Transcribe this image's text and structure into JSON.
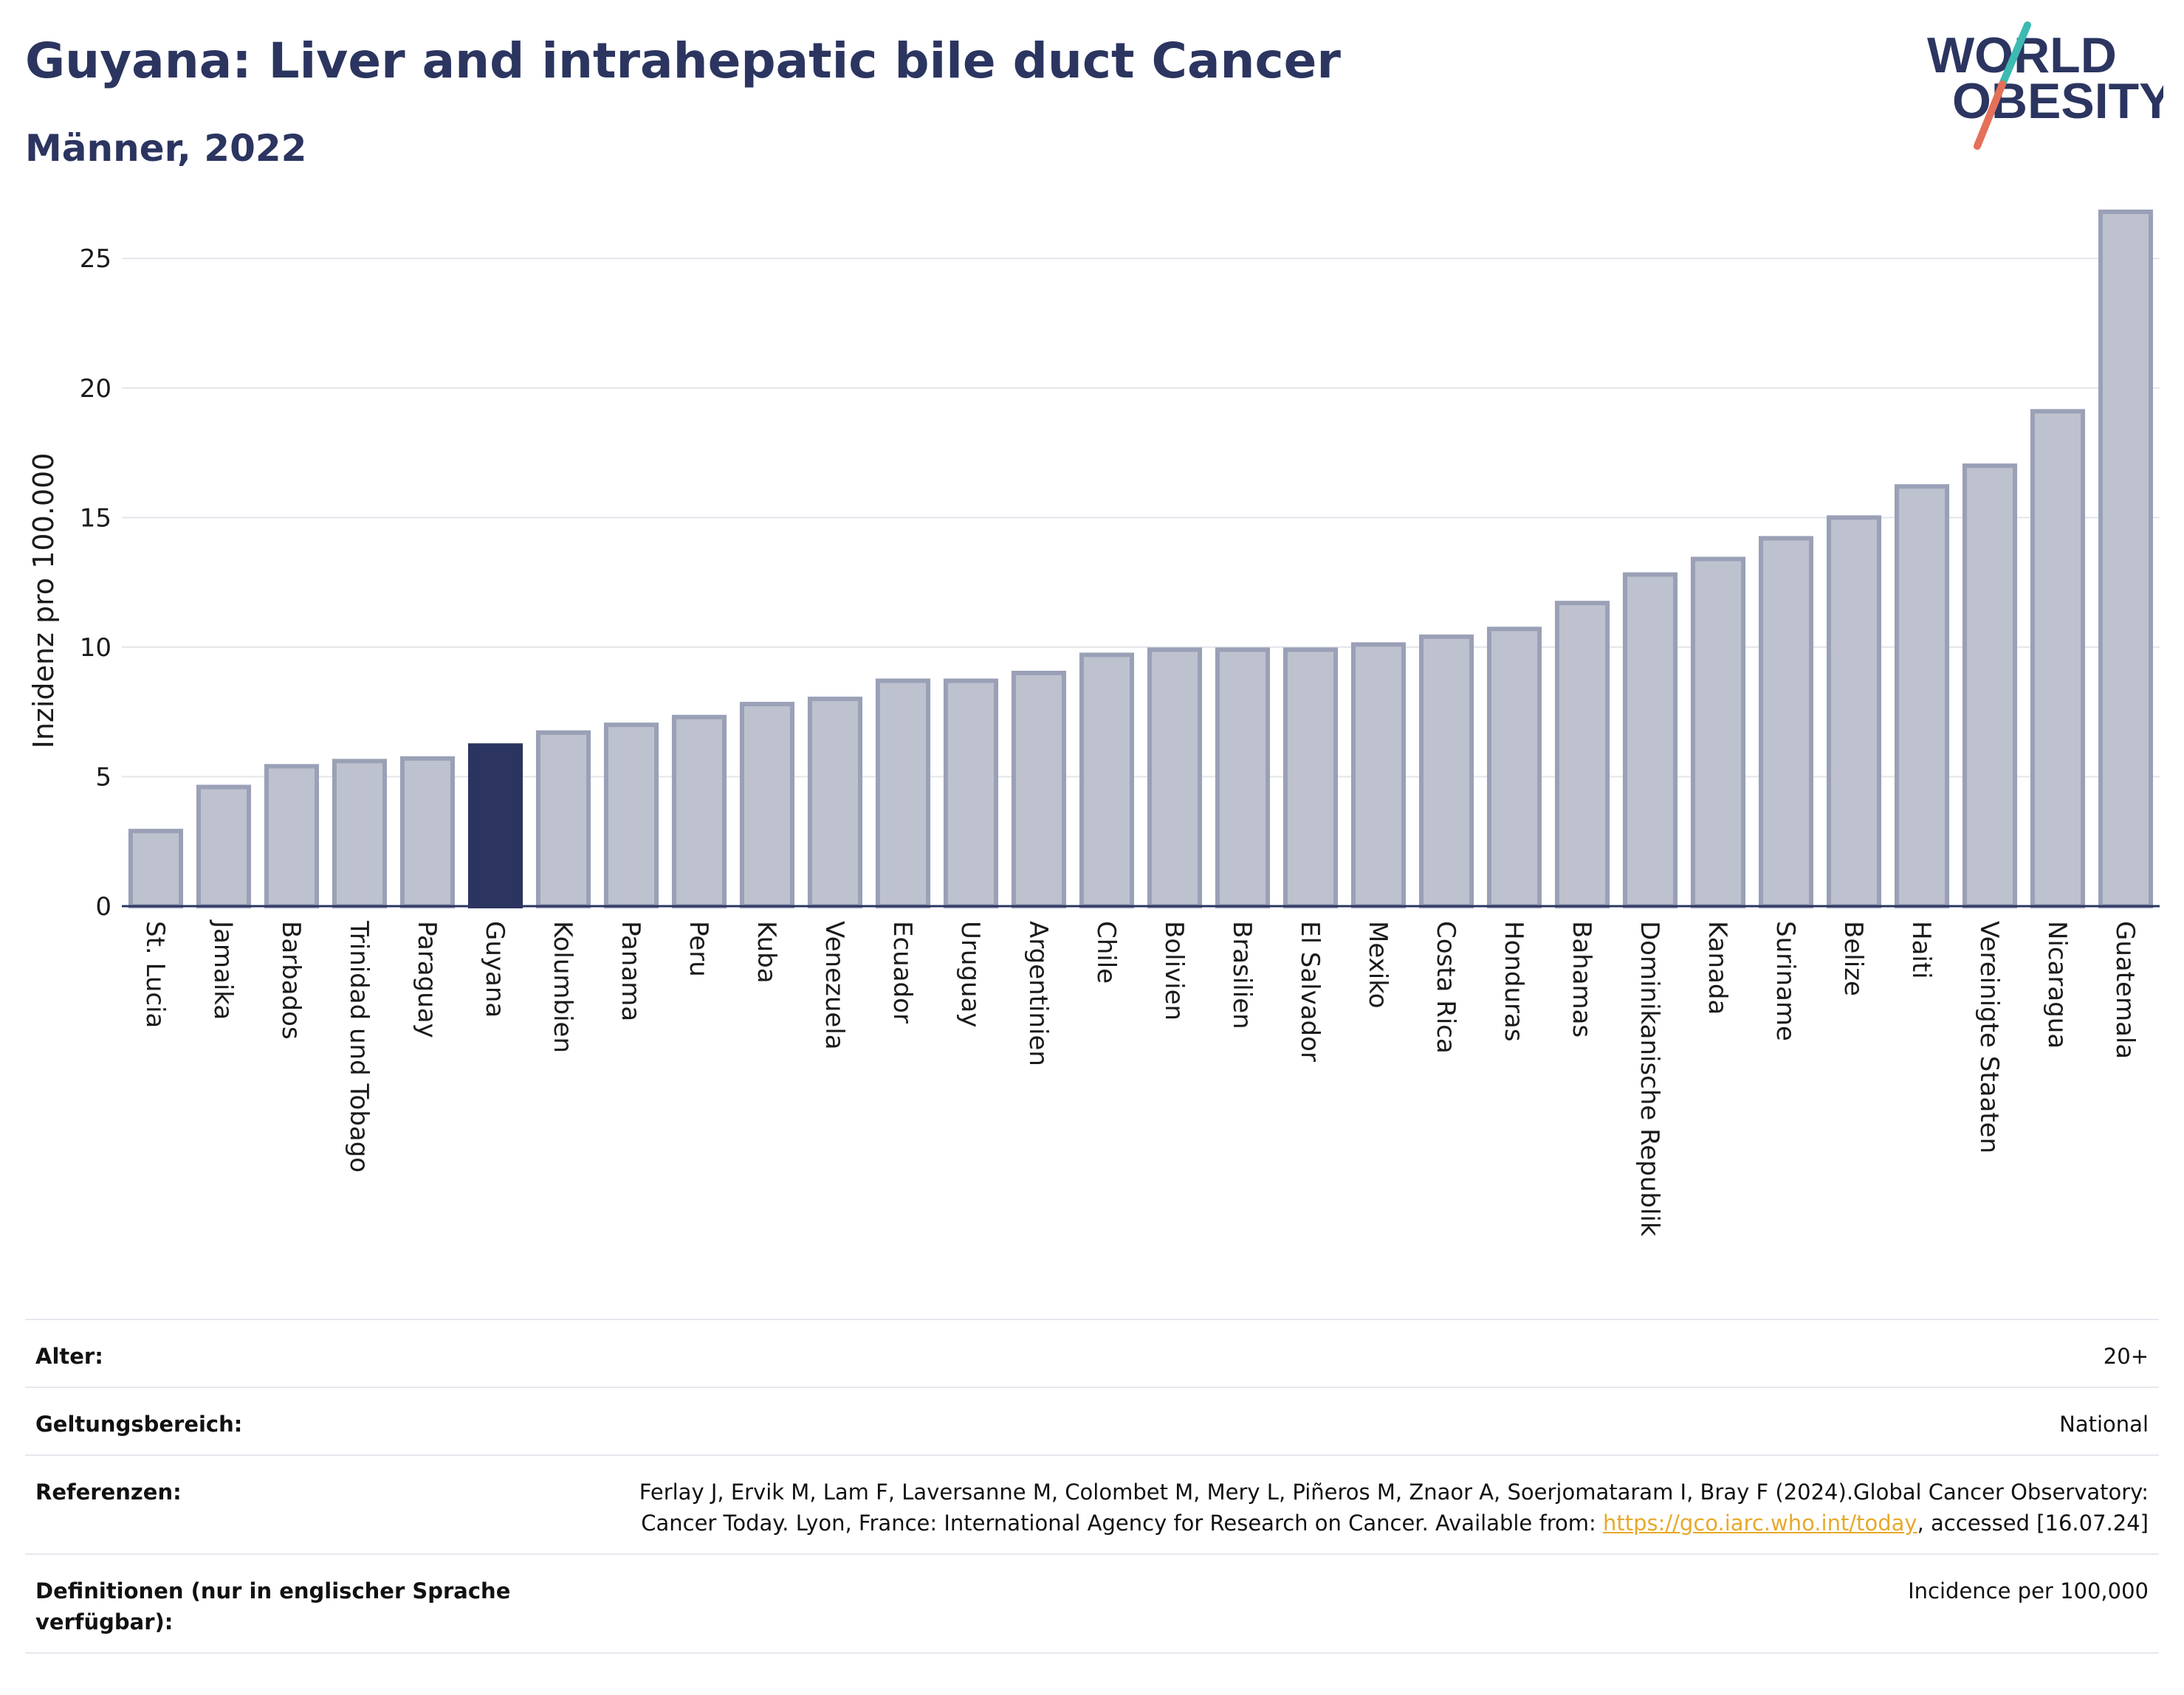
{
  "header": {
    "title": "Guyana: Liver and intrahepatic bile duct Cancer",
    "subtitle": "Männer, 2022"
  },
  "logo": {
    "line1": "WORLD",
    "line2": "OBESITY",
    "accent_colors": [
      "#e5705a",
      "#3dbab1"
    ]
  },
  "colors": {
    "highlight": "#2b3560",
    "bar": "#bec2cf",
    "bar_border": "#9aa0b6"
  },
  "chart_data": {
    "type": "bar",
    "title": "Guyana: Liver and intrahepatic bile duct Cancer",
    "subtitle": "Männer, 2022",
    "xlabel": "",
    "ylabel": "Inzidenz pro 100.000",
    "ylim": [
      0,
      27
    ],
    "yticks": [
      0,
      5,
      10,
      15,
      20,
      25
    ],
    "highlight": "Guyana",
    "grid": true,
    "categories": [
      "St. Lucia",
      "Jamaika",
      "Barbados",
      "Trinidad und Tobago",
      "Paraguay",
      "Guyana",
      "Kolumbien",
      "Panama",
      "Peru",
      "Kuba",
      "Venezuela",
      "Ecuador",
      "Uruguay",
      "Argentinien",
      "Chile",
      "Bolivien",
      "Brasilien",
      "El Salvador",
      "Mexiko",
      "Costa Rica",
      "Honduras",
      "Bahamas",
      "Dominikanische Republik",
      "Kanada",
      "Suriname",
      "Belize",
      "Haiti",
      "Vereinigte Staaten",
      "Nicaragua",
      "Guatemala"
    ],
    "values": [
      2.9,
      4.6,
      5.4,
      5.6,
      5.7,
      6.2,
      6.7,
      7.0,
      7.3,
      7.8,
      8.0,
      8.7,
      8.7,
      9.0,
      9.7,
      9.9,
      9.9,
      9.9,
      10.1,
      10.4,
      10.7,
      11.7,
      12.8,
      13.4,
      14.2,
      15.0,
      16.2,
      17.0,
      19.1,
      26.8
    ]
  },
  "meta": {
    "age_label": "Alter:",
    "age_value": "20+",
    "scope_label": "Geltungsbereich:",
    "scope_value": "National",
    "ref_label": "Referenzen:",
    "ref_text_1": "Ferlay J, Ervik M, Lam F, Laversanne M, Colombet M, Mery L, Piñeros M, Znaor A, Soerjomataram I, Bray F (2024).Global Cancer Observatory: Cancer Today. Lyon, France: International Agency for Research on Cancer. Available from: ",
    "ref_link": "https://gco.iarc.who.int/today",
    "ref_text_2": ", accessed [16.07.24]",
    "def_label": "Definitionen (nur in englischer Sprache verfügbar):",
    "def_value": "Incidence per 100,000"
  }
}
